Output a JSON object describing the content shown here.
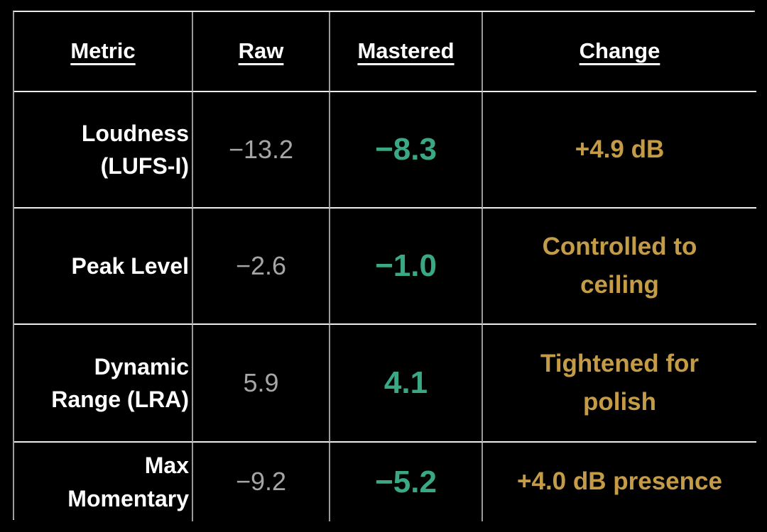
{
  "page": {
    "background": "#000000"
  },
  "colors": {
    "header_text": "#ffffff",
    "metric_text": "#ffffff",
    "raw_text": "#a6a6a6",
    "mastered_text": "#3aa885",
    "change_text": "#c49c48",
    "border_vertical": "#9a9a9a",
    "border_horizontal": "#ededed"
  },
  "table": {
    "columns": [
      {
        "label": "Metric"
      },
      {
        "label": "Raw"
      },
      {
        "label": "Mastered"
      },
      {
        "label": "Change"
      }
    ],
    "rows": [
      {
        "metric": "Loudness\n(LUFS-I)",
        "raw": "−13.2",
        "mastered": "−8.3",
        "change": "+4.9 dB"
      },
      {
        "metric": "Peak Level",
        "raw": "−2.6",
        "mastered": "−1.0",
        "change": "Controlled to\nceiling"
      },
      {
        "metric": "Dynamic\nRange (LRA)",
        "raw": "5.9",
        "mastered": "4.1",
        "change": "Tightened for\npolish"
      },
      {
        "metric": "Max\nMomentary",
        "raw": "−9.2",
        "mastered": "−5.2",
        "change": "+4.0 dB presence"
      }
    ]
  },
  "chart_data": {
    "type": "table",
    "title": "Raw vs Mastered audio metrics comparison",
    "columns": [
      "Metric",
      "Raw",
      "Mastered",
      "Change"
    ],
    "rows": [
      [
        "Loudness (LUFS-I)",
        -13.2,
        -8.3,
        "+4.9 dB"
      ],
      [
        "Peak Level",
        -2.6,
        -1.0,
        "Controlled to ceiling"
      ],
      [
        "Dynamic Range (LRA)",
        5.9,
        4.1,
        "Tightened for polish"
      ],
      [
        "Max Momentary",
        -9.2,
        -5.2,
        "+4.0 dB presence"
      ]
    ],
    "layout": {
      "background": "#000000",
      "grid": true,
      "header_underlined": true,
      "value_colors": {
        "raw": "#a6a6a6",
        "mastered": "#3aa885",
        "change": "#c49c48"
      }
    }
  }
}
